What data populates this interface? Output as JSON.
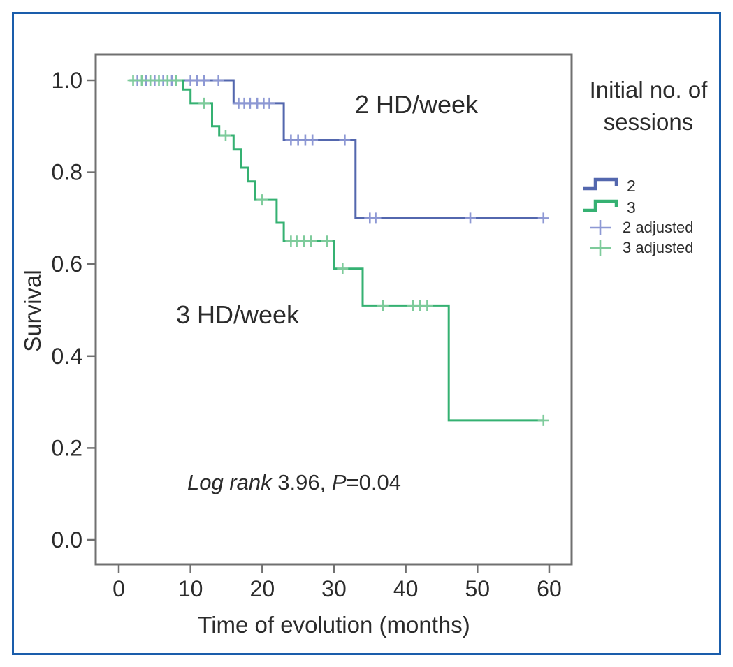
{
  "figure": {
    "background": "#ffffff",
    "border_color": "#1a5dab"
  },
  "chart_data": {
    "type": "line",
    "subtype": "kaplan_meier_step",
    "title": "",
    "xlabel": "Time of evolution (months)",
    "ylabel": "Survival",
    "xticks": [
      0,
      10,
      20,
      30,
      40,
      50,
      60
    ],
    "ytick_labels": [
      "0.0",
      "0.2",
      "0.4",
      "0.6",
      "0.8",
      "1.0"
    ],
    "xlim": [
      -3.2,
      63.1
    ],
    "ylim": [
      -0.05,
      1.06
    ],
    "grid": false,
    "frame_color": "#707070",
    "legend_position": "right",
    "series": [
      {
        "name": "2",
        "label": "2 HD/week",
        "color": "#5367ae",
        "censor_color": "#8d98d4",
        "points": [
          [
            1.5,
            1.0
          ],
          [
            16,
            1.0
          ],
          [
            16,
            0.95
          ],
          [
            23,
            0.95
          ],
          [
            23,
            0.87
          ],
          [
            33,
            0.87
          ],
          [
            33,
            0.7
          ],
          [
            59.3,
            0.7
          ]
        ],
        "censors": [
          [
            2.6,
            1.0
          ],
          [
            3.8,
            1.0
          ],
          [
            5.0,
            1.0
          ],
          [
            6.2,
            1.0
          ],
          [
            7.4,
            1.0
          ],
          [
            10,
            1.0
          ],
          [
            10.9,
            1.0
          ],
          [
            11.9,
            1.0
          ],
          [
            13.9,
            1.0
          ],
          [
            16.7,
            0.95
          ],
          [
            17.5,
            0.95
          ],
          [
            18.3,
            0.95
          ],
          [
            19.3,
            0.95
          ],
          [
            20.2,
            0.95
          ],
          [
            21,
            0.95
          ],
          [
            24,
            0.87
          ],
          [
            25,
            0.87
          ],
          [
            26,
            0.87
          ],
          [
            27,
            0.87
          ],
          [
            31.5,
            0.87
          ],
          [
            35,
            0.7
          ],
          [
            35.8,
            0.7
          ],
          [
            49,
            0.7
          ],
          [
            59.2,
            0.7
          ]
        ]
      },
      {
        "name": "3",
        "label": "3 HD/week",
        "color": "#35b172",
        "censor_color": "#7ecb9b",
        "points": [
          [
            1.5,
            1.0
          ],
          [
            9,
            1.0
          ],
          [
            9,
            0.98
          ],
          [
            10,
            0.98
          ],
          [
            10,
            0.95
          ],
          [
            13,
            0.95
          ],
          [
            13,
            0.9
          ],
          [
            14,
            0.9
          ],
          [
            14,
            0.88
          ],
          [
            16,
            0.88
          ],
          [
            16,
            0.85
          ],
          [
            17,
            0.85
          ],
          [
            17,
            0.81
          ],
          [
            18,
            0.81
          ],
          [
            18,
            0.78
          ],
          [
            19,
            0.78
          ],
          [
            19,
            0.74
          ],
          [
            22,
            0.74
          ],
          [
            22,
            0.69
          ],
          [
            23,
            0.69
          ],
          [
            23,
            0.65
          ],
          [
            30,
            0.65
          ],
          [
            30,
            0.59
          ],
          [
            34,
            0.59
          ],
          [
            34,
            0.51
          ],
          [
            46,
            0.51
          ],
          [
            46,
            0.26
          ],
          [
            59.3,
            0.26
          ]
        ],
        "censors": [
          [
            2,
            1.0
          ],
          [
            3.2,
            1.0
          ],
          [
            4.4,
            1.0
          ],
          [
            5.6,
            1.0
          ],
          [
            6.8,
            1.0
          ],
          [
            8,
            1.0
          ],
          [
            11.9,
            0.95
          ],
          [
            14.9,
            0.88
          ],
          [
            20,
            0.74
          ],
          [
            24,
            0.65
          ],
          [
            24.8,
            0.65
          ],
          [
            25.8,
            0.65
          ],
          [
            26.8,
            0.65
          ],
          [
            29,
            0.65
          ],
          [
            31.2,
            0.59
          ],
          [
            36.8,
            0.51
          ],
          [
            41,
            0.51
          ],
          [
            42,
            0.51
          ],
          [
            43,
            0.51
          ],
          [
            59.2,
            0.26
          ]
        ]
      }
    ],
    "annotations": {
      "curve_labels": [
        {
          "text": "2 HD/week"
        },
        {
          "text": "3 HD/week"
        }
      ],
      "logrank_segments": [
        {
          "text": "Log rank ",
          "italic": true
        },
        {
          "text": "3.96, ",
          "italic": false
        },
        {
          "text": "P",
          "italic": true
        },
        {
          "text": "=0.04",
          "italic": false
        }
      ]
    },
    "legend": {
      "title_lines": [
        "Initial no. of",
        "sessions"
      ],
      "entries": [
        {
          "label": "2",
          "symbol": "step-line",
          "color": "#5367ae"
        },
        {
          "label": "3",
          "symbol": "step-line",
          "color": "#35b172"
        },
        {
          "label": "2 adjusted",
          "symbol": "plus",
          "color": "#8d98d4"
        },
        {
          "label": "3 adjusted",
          "symbol": "plus",
          "color": "#7ecb9b"
        }
      ]
    }
  }
}
